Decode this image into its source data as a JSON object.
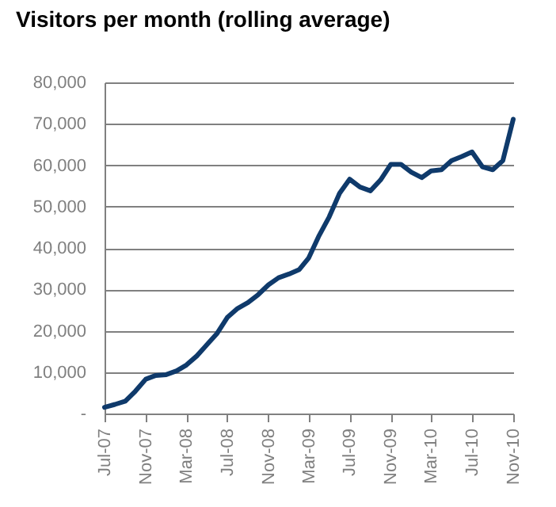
{
  "chart_data": {
    "type": "line",
    "title": "Visitors per month (rolling average)",
    "x": [
      "2007-07",
      "2007-08",
      "2007-09",
      "2007-10",
      "2007-11",
      "2007-12",
      "2008-01",
      "2008-02",
      "2008-03",
      "2008-04",
      "2008-05",
      "2008-06",
      "2008-07",
      "2008-08",
      "2008-09",
      "2008-10",
      "2008-11",
      "2008-12",
      "2009-01",
      "2009-02",
      "2009-03",
      "2009-04",
      "2009-05",
      "2009-06",
      "2009-07",
      "2009-08",
      "2009-09",
      "2009-10",
      "2009-11",
      "2009-12",
      "2010-01",
      "2010-02",
      "2010-03",
      "2010-04",
      "2010-05",
      "2010-06",
      "2010-07",
      "2010-08",
      "2010-09",
      "2010-10",
      "2010-11"
    ],
    "series": [
      {
        "color": "#0f3a6b",
        "values": [
          1500,
          2200,
          3000,
          5400,
          8300,
          9200,
          9400,
          10300,
          11700,
          13900,
          16600,
          19400,
          23200,
          25400,
          26800,
          28700,
          31100,
          32800,
          33700,
          34800,
          37600,
          43000,
          47500,
          53200,
          56600,
          54700,
          53800,
          56400,
          60200,
          60200,
          58300,
          57000,
          58600,
          58900,
          61100,
          62100,
          63200,
          59600,
          58900,
          61100,
          71100
        ]
      }
    ],
    "xlim": [
      "2007-07",
      "2010-11"
    ],
    "xticks": [
      {
        "value": "2007-07",
        "label": "Jul-07"
      },
      {
        "value": "2007-11",
        "label": "Nov-07"
      },
      {
        "value": "2008-03",
        "label": "Mar-08"
      },
      {
        "value": "2008-07",
        "label": "Jul-08"
      },
      {
        "value": "2008-11",
        "label": "Nov-08"
      },
      {
        "value": "2009-03",
        "label": "Mar-09"
      },
      {
        "value": "2009-07",
        "label": "Jul-09"
      },
      {
        "value": "2009-11",
        "label": "Nov-09"
      },
      {
        "value": "2010-03",
        "label": "Mar-10"
      },
      {
        "value": "2010-07",
        "label": "Jul-10"
      },
      {
        "value": "2010-11",
        "label": "Nov-10"
      }
    ],
    "ylim": [
      0,
      80000
    ],
    "yticks": [
      {
        "value": 0,
        "label": "-"
      },
      {
        "value": 10000,
        "label": "10,000"
      },
      {
        "value": 20000,
        "label": "20,000"
      },
      {
        "value": 30000,
        "label": "30,000"
      },
      {
        "value": 40000,
        "label": "40,000"
      },
      {
        "value": 50000,
        "label": "50,000"
      },
      {
        "value": 60000,
        "label": "60,000"
      },
      {
        "value": 70000,
        "label": "70,000"
      },
      {
        "value": 80000,
        "label": "80,000"
      }
    ],
    "grid": "y",
    "marker": "none",
    "line_style": "solid"
  }
}
